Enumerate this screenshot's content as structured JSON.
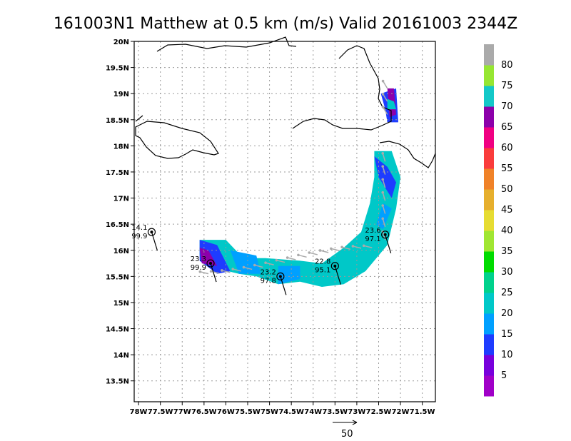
{
  "chart_data": {
    "type": "heatmap",
    "title": "161003N1 Matthew at 0.5 km (m/s) Valid 20161003 2344Z",
    "xlabel": "",
    "ylabel": "",
    "xlim": [
      -78.1,
      -71.2
    ],
    "ylim": [
      13.1,
      20.0
    ],
    "x_ticks": [
      "78W",
      "77.5W",
      "77W",
      "76.5W",
      "76W",
      "75.5W",
      "75W",
      "74.5W",
      "74W",
      "73.5W",
      "73W",
      "72.5W",
      "72W",
      "71.5W"
    ],
    "y_ticks": [
      "20N",
      "19.5N",
      "19N",
      "18.5N",
      "18N",
      "17.5N",
      "17N",
      "16.5N",
      "16N",
      "15.5N",
      "15N",
      "14.5N",
      "14N",
      "13.5N"
    ],
    "grid": true,
    "colorbar": {
      "labels": [
        "5",
        "10",
        "15",
        "20",
        "25",
        "30",
        "35",
        "40",
        "45",
        "50",
        "55",
        "60",
        "65",
        "70",
        "75",
        "80"
      ],
      "colors": [
        "#a000c8",
        "#7800dc",
        "#1e3cff",
        "#00a0ff",
        "#00c8c8",
        "#00d28c",
        "#00dc00",
        "#a0e632",
        "#e6dc32",
        "#e6af2d",
        "#f08228",
        "#fa3c3c",
        "#f00082",
        "#8c00aa",
        "#14c8c8",
        "#96e632",
        "#aaaaaa"
      ]
    },
    "observations": [
      {
        "lon": -77.7,
        "lat": 16.35,
        "label_top": "14.1",
        "label_bottom": "99.9"
      },
      {
        "lon": -76.35,
        "lat": 15.75,
        "label_top": "23.3",
        "label_bottom": "99.9"
      },
      {
        "lon": -74.75,
        "lat": 15.5,
        "label_top": "23.2",
        "label_bottom": "97.8"
      },
      {
        "lon": -73.5,
        "lat": 15.7,
        "label_top": "22.8",
        "label_bottom": "95.1"
      },
      {
        "lon": -72.35,
        "lat": 16.3,
        "label_top": "23.6",
        "label_bottom": "97.1"
      }
    ],
    "wind_scale_label": "50"
  }
}
